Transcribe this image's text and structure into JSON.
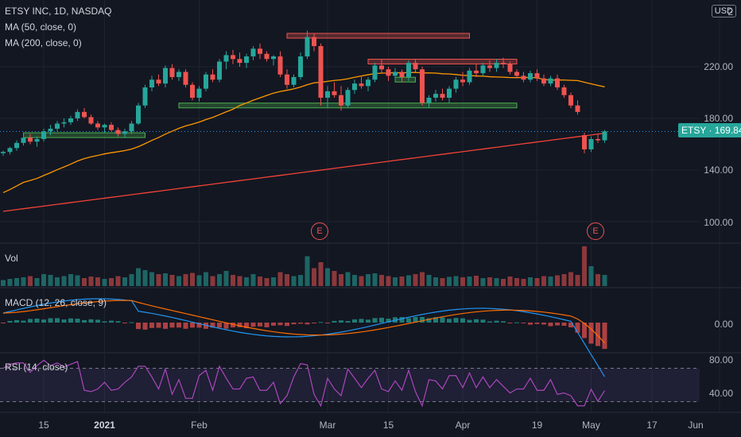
{
  "legend": {
    "symbol": "ETSY INC, 1D, NASDAQ",
    "ma50": "MA (50, close, 0)",
    "ma200": "MA (200, close, 0)"
  },
  "currency": "USD",
  "price_tag": {
    "symbol": "ETSY",
    "value": "169.84"
  },
  "panes": {
    "volume": "Vol",
    "macd": "MACD (12, 26, close, 9)",
    "rsi": "RSI (14, close)"
  },
  "events": [
    "E",
    "E"
  ],
  "colors": {
    "up": "#26a69a",
    "down": "#ef5350",
    "ma50": "#ff9800",
    "ma200": "#f44336",
    "macd": "#2196f3",
    "signal": "#ff6d00",
    "rsi": "#ab47bc",
    "grid": "#1f2330"
  },
  "chart_data": {
    "type": "candlestick",
    "price_axis": {
      "ticks": [
        "220.00",
        "180.00",
        "140.00",
        "100.00"
      ],
      "range": [
        80,
        240
      ]
    },
    "macd_axis": {
      "ticks": [
        "0.00"
      ]
    },
    "rsi_axis": {
      "ticks": [
        "80.00",
        "40.00"
      ],
      "bands": [
        70,
        30
      ]
    },
    "x_ticks": [
      {
        "label": "15",
        "i": 6
      },
      {
        "label": "2021",
        "i": 15,
        "bold": true
      },
      {
        "label": "Feb",
        "i": 29
      },
      {
        "label": "Mar",
        "i": 48
      },
      {
        "label": "15",
        "i": 57
      },
      {
        "label": "Apr",
        "i": 68
      },
      {
        "label": "19",
        "i": 79
      },
      {
        "label": "May",
        "i": 87
      },
      {
        "label": "17",
        "i": 96
      },
      {
        "label": "Jun",
        "i": 106
      }
    ],
    "candles": [
      [
        153,
        155,
        151,
        154
      ],
      [
        154,
        158,
        152,
        157
      ],
      [
        157,
        163,
        155,
        161
      ],
      [
        161,
        167,
        159,
        165
      ],
      [
        165,
        168,
        160,
        162
      ],
      [
        162,
        166,
        158,
        164
      ],
      [
        164,
        172,
        162,
        170
      ],
      [
        170,
        175,
        167,
        172
      ],
      [
        172,
        178,
        170,
        176
      ],
      [
        176,
        180,
        173,
        177
      ],
      [
        177,
        182,
        175,
        180
      ],
      [
        180,
        187,
        178,
        185
      ],
      [
        185,
        188,
        180,
        181
      ],
      [
        181,
        183,
        175,
        176
      ],
      [
        176,
        178,
        171,
        173
      ],
      [
        173,
        176,
        169,
        175
      ],
      [
        175,
        177,
        170,
        171
      ],
      [
        171,
        173,
        166,
        168
      ],
      [
        168,
        172,
        165,
        170
      ],
      [
        170,
        178,
        168,
        176
      ],
      [
        176,
        192,
        175,
        190
      ],
      [
        190,
        206,
        188,
        204
      ],
      [
        204,
        213,
        201,
        210
      ],
      [
        210,
        214,
        205,
        207
      ],
      [
        207,
        221,
        204,
        219
      ],
      [
        219,
        222,
        210,
        212
      ],
      [
        212,
        218,
        209,
        216
      ],
      [
        216,
        218,
        204,
        206
      ],
      [
        206,
        208,
        194,
        196
      ],
      [
        196,
        205,
        193,
        203
      ],
      [
        203,
        216,
        201,
        214
      ],
      [
        214,
        218,
        208,
        210
      ],
      [
        210,
        226,
        208,
        224
      ],
      [
        224,
        232,
        218,
        229
      ],
      [
        229,
        233,
        222,
        226
      ],
      [
        226,
        231,
        220,
        223
      ],
      [
        223,
        230,
        219,
        228
      ],
      [
        228,
        236,
        225,
        234
      ],
      [
        234,
        238,
        226,
        230
      ],
      [
        230,
        232,
        224,
        226
      ],
      [
        226,
        229,
        221,
        228
      ],
      [
        228,
        232,
        212,
        214
      ],
      [
        214,
        218,
        203,
        206
      ],
      [
        206,
        214,
        204,
        212
      ],
      [
        212,
        231,
        210,
        228
      ],
      [
        228,
        248,
        226,
        243
      ],
      [
        243,
        246,
        232,
        236
      ],
      [
        236,
        238,
        190,
        196
      ],
      [
        196,
        205,
        188,
        201
      ],
      [
        201,
        208,
        196,
        198
      ],
      [
        198,
        205,
        186,
        190
      ],
      [
        190,
        204,
        188,
        202
      ],
      [
        202,
        210,
        199,
        207
      ],
      [
        207,
        213,
        203,
        205
      ],
      [
        205,
        212,
        201,
        210
      ],
      [
        210,
        223,
        208,
        221
      ],
      [
        221,
        226,
        215,
        218
      ],
      [
        218,
        220,
        209,
        213
      ],
      [
        213,
        219,
        210,
        216
      ],
      [
        216,
        218,
        208,
        212
      ],
      [
        212,
        225,
        209,
        223
      ],
      [
        223,
        226,
        216,
        218
      ],
      [
        218,
        220,
        190,
        192
      ],
      [
        192,
        198,
        188,
        196
      ],
      [
        196,
        202,
        193,
        199
      ],
      [
        199,
        203,
        194,
        196
      ],
      [
        196,
        205,
        192,
        203
      ],
      [
        203,
        212,
        200,
        210
      ],
      [
        210,
        216,
        205,
        208
      ],
      [
        208,
        219,
        206,
        217
      ],
      [
        217,
        222,
        212,
        215
      ],
      [
        215,
        223,
        213,
        221
      ],
      [
        221,
        225,
        216,
        219
      ],
      [
        219,
        226,
        216,
        223
      ],
      [
        223,
        227,
        219,
        222
      ],
      [
        222,
        224,
        214,
        216
      ],
      [
        216,
        218,
        211,
        213
      ],
      [
        213,
        216,
        208,
        210
      ],
      [
        210,
        217,
        208,
        215
      ],
      [
        215,
        218,
        209,
        211
      ],
      [
        211,
        214,
        205,
        207
      ],
      [
        207,
        213,
        205,
        211
      ],
      [
        211,
        214,
        202,
        204
      ],
      [
        204,
        206,
        196,
        198
      ],
      [
        198,
        200,
        188,
        190
      ],
      [
        190,
        194,
        183,
        185
      ],
      [
        167,
        169,
        153,
        156
      ],
      [
        156,
        166,
        154,
        164
      ],
      [
        164,
        168,
        161,
        163
      ],
      [
        163,
        171,
        161,
        170
      ]
    ],
    "volume_heights": [
      0.15,
      0.18,
      0.2,
      0.22,
      0.25,
      0.2,
      0.3,
      0.28,
      0.22,
      0.25,
      0.3,
      0.27,
      0.2,
      0.24,
      0.22,
      0.18,
      0.2,
      0.25,
      0.22,
      0.3,
      0.45,
      0.4,
      0.35,
      0.3,
      0.32,
      0.28,
      0.25,
      0.3,
      0.33,
      0.27,
      0.35,
      0.25,
      0.3,
      0.38,
      0.28,
      0.25,
      0.22,
      0.3,
      0.24,
      0.2,
      0.22,
      0.35,
      0.3,
      0.25,
      0.28,
      0.75,
      0.45,
      0.6,
      0.45,
      0.38,
      0.3,
      0.35,
      0.28,
      0.25,
      0.3,
      0.32,
      0.28,
      0.25,
      0.22,
      0.24,
      0.27,
      0.3,
      0.35,
      0.28,
      0.22,
      0.2,
      0.23,
      0.25,
      0.22,
      0.24,
      0.26,
      0.2,
      0.22,
      0.2,
      0.18,
      0.24,
      0.2,
      0.18,
      0.22,
      0.2,
      0.25,
      0.24,
      0.27,
      0.3,
      0.35,
      0.28,
      1.0,
      0.5,
      0.3,
      0.28
    ]
  }
}
